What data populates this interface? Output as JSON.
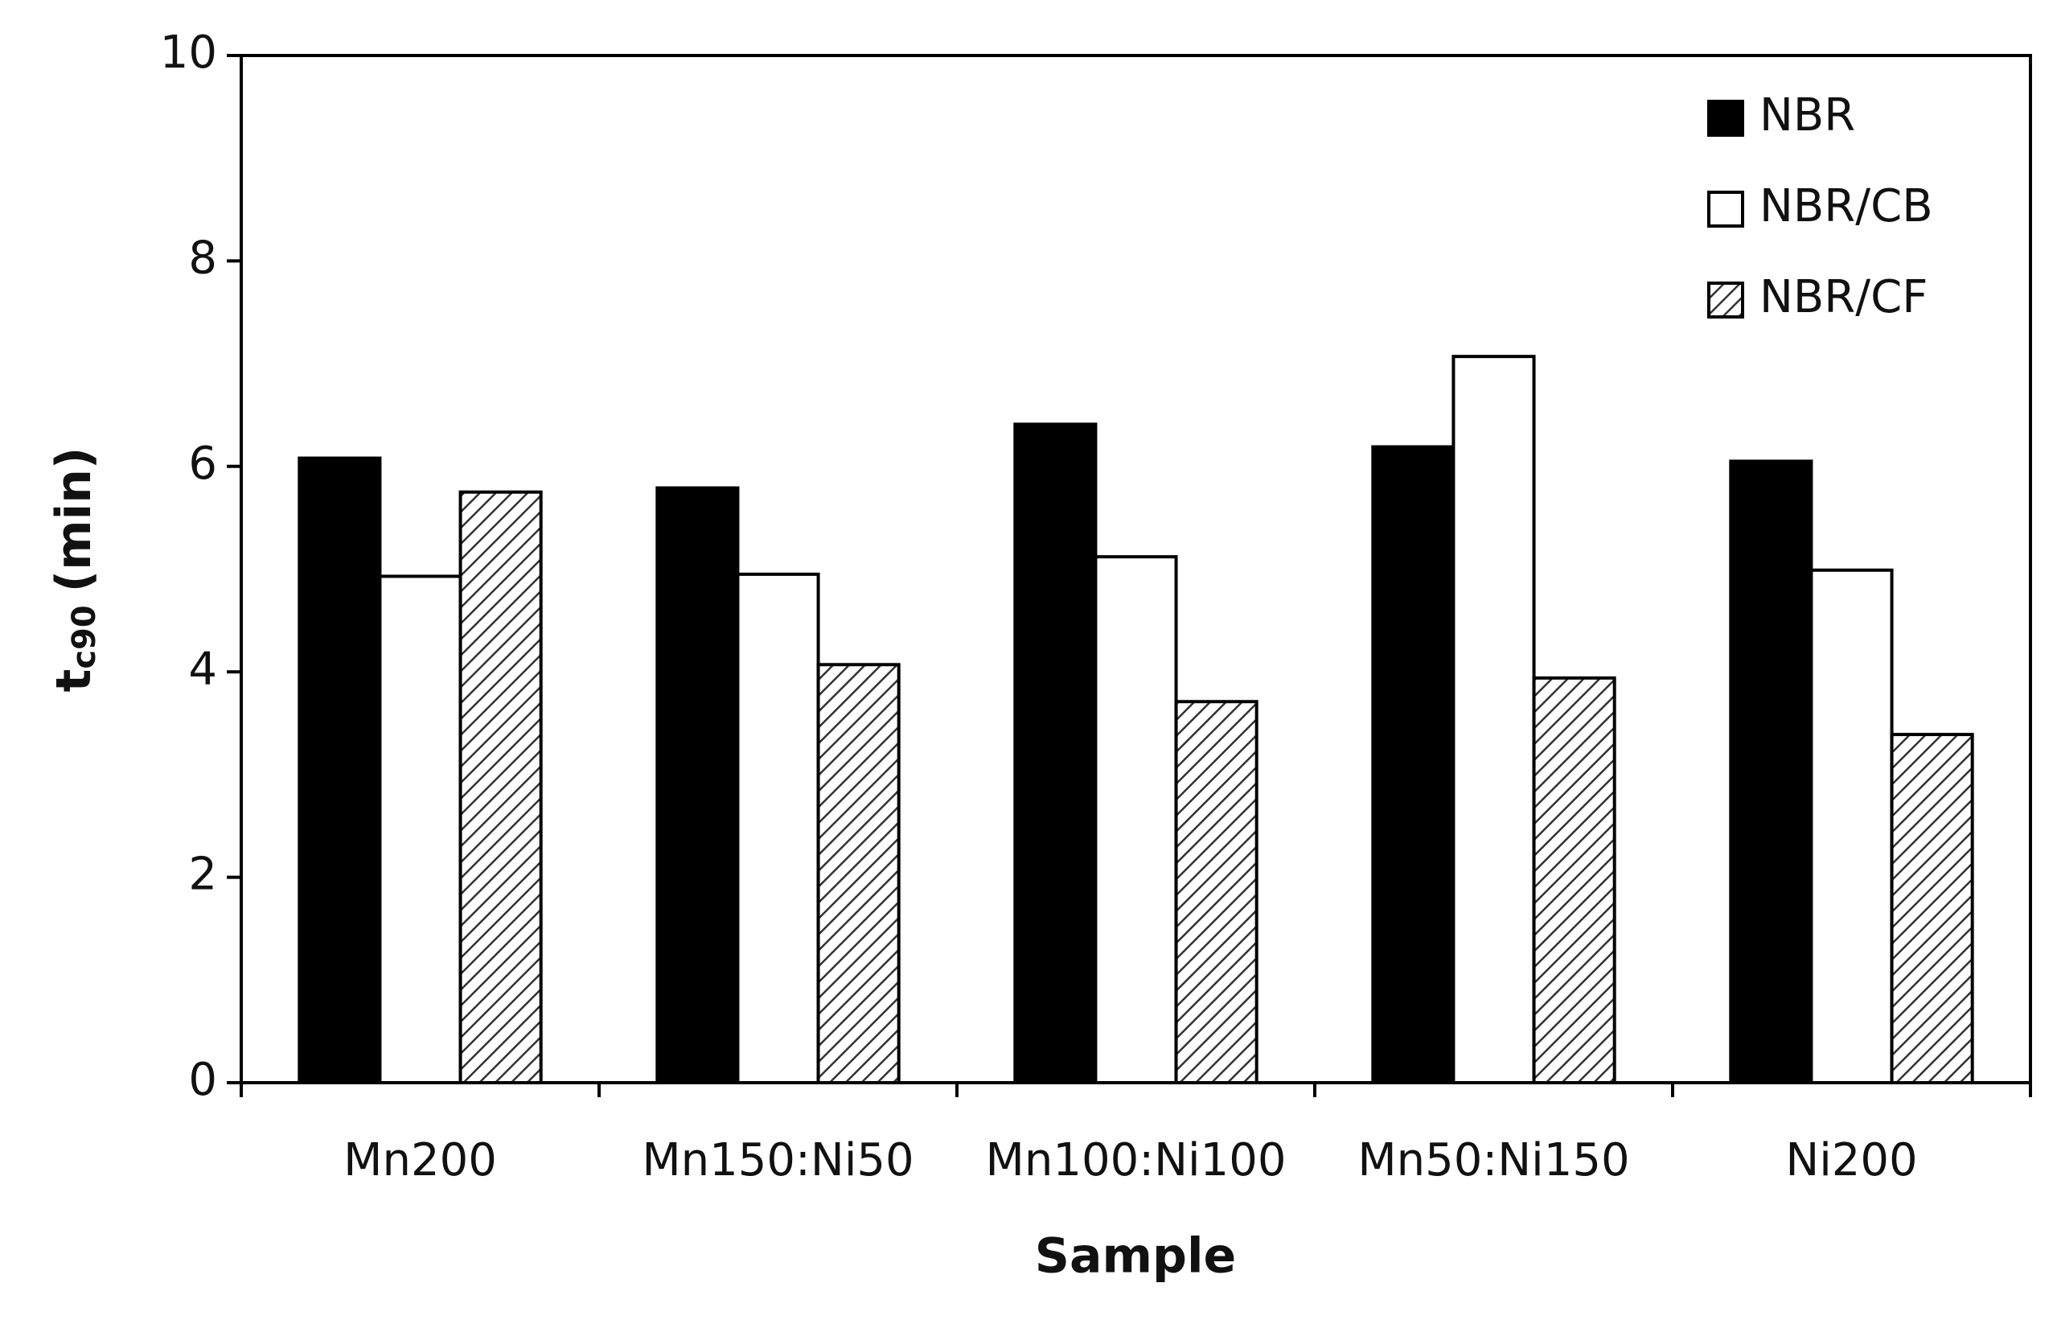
{
  "chart_data": {
    "type": "bar",
    "xlabel": "Sample",
    "ylabel": {
      "main": "t",
      "sub": "c90",
      "unit": "(min)"
    },
    "categories": [
      "Mn200",
      "Mn150:Ni50",
      "Mn100:Ni100",
      "Mn50:Ni150",
      "Ni200"
    ],
    "series": [
      {
        "name": "NBR",
        "color": "#000000",
        "values": [
          6.08,
          5.79,
          6.41,
          6.19,
          6.05
        ]
      },
      {
        "name": "NBR/CB",
        "color": "#ffffff",
        "values": [
          4.93,
          4.95,
          5.12,
          7.07,
          4.99
        ]
      },
      {
        "name": "NBR/CF",
        "color": "#ffffff",
        "hatch": true,
        "values": [
          5.75,
          4.07,
          3.71,
          3.94,
          3.39
        ]
      }
    ],
    "ylim": [
      0,
      10
    ],
    "yticks": [
      0,
      2,
      4,
      6,
      8,
      10
    ],
    "grid": false,
    "legend": "top-right"
  }
}
